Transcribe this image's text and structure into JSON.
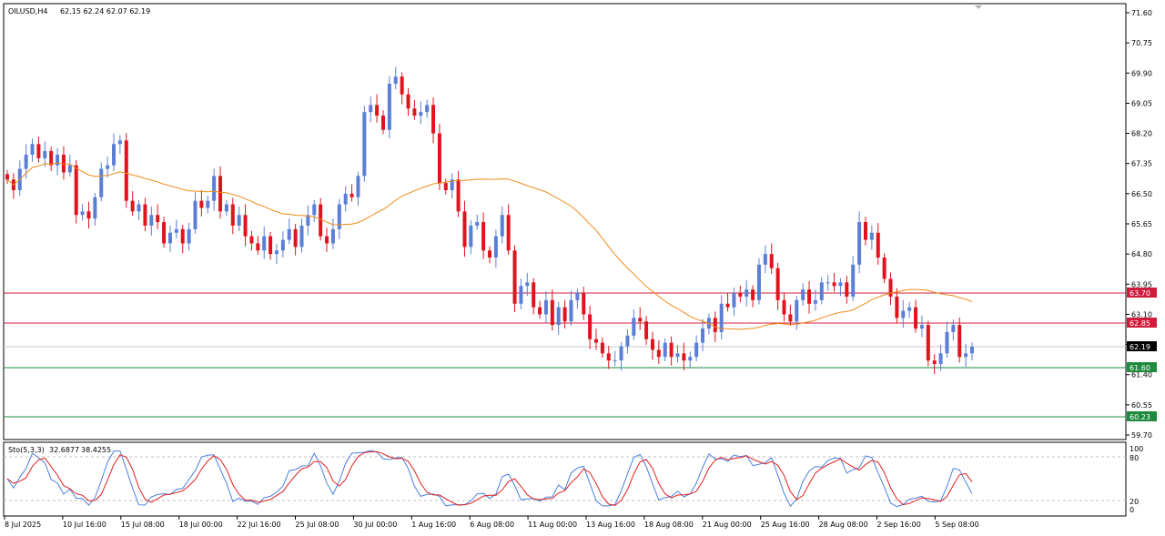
{
  "header": {
    "symbol": "OILUSD,H4",
    "ohlc": "62.15 62.24 62.07 62.19"
  },
  "indicator": {
    "label": "Sto(5,3,3)",
    "main_value": "32.6877",
    "signal_value": "38.4255",
    "levels": [
      "100",
      "80",
      "20",
      "0"
    ]
  },
  "colors": {
    "bull": "#5b7fd6",
    "bear": "#e0141e",
    "ma": "#f08a18",
    "resistance": "#d01c3c",
    "support": "#1e8a3e",
    "current": "#b4b4b4",
    "sto_main": "#4a7fe0",
    "sto_signal": "#e01e1e"
  },
  "chart_data": [
    {
      "type": "candlestick",
      "title": "OILUSD,H4",
      "yticks": [
        "71.60",
        "70.75",
        "69.90",
        "69.05",
        "68.20",
        "67.35",
        "66.50",
        "65.65",
        "64.80",
        "63.95",
        "63.10",
        "62.25",
        "61.40",
        "60.55",
        "59.70"
      ],
      "ylim": [
        59.7,
        71.6
      ],
      "xticks": [
        "8 Jul 2025",
        "10 Jul 16:00",
        "15 Jul 08:00",
        "18 Jul 00:00",
        "22 Jul 16:00",
        "25 Jul 08:00",
        "30 Jul 00:00",
        "1 Aug 16:00",
        "6 Aug 08:00",
        "11 Aug 00:00",
        "13 Aug 16:00",
        "18 Aug 08:00",
        "21 Aug 00:00",
        "25 Aug 16:00",
        "28 Aug 08:00",
        "2 Sep 16:00",
        "5 Sep 08:00"
      ],
      "closes": [
        66.9,
        66.6,
        67.2,
        67.6,
        67.9,
        67.5,
        67.7,
        67.3,
        67.6,
        67.1,
        67.3,
        65.9,
        66.0,
        65.8,
        66.4,
        67.2,
        67.3,
        67.9,
        68.0,
        66.3,
        66.0,
        66.2,
        65.6,
        65.9,
        65.7,
        65.1,
        65.4,
        65.5,
        65.1,
        65.5,
        66.3,
        66.1,
        66.3,
        67.0,
        66.0,
        66.2,
        65.6,
        65.9,
        65.3,
        65.1,
        64.9,
        65.3,
        64.8,
        64.9,
        65.2,
        65.5,
        65.0,
        65.6,
        65.9,
        66.2,
        65.3,
        65.1,
        65.5,
        66.2,
        66.5,
        66.4,
        67.0,
        68.8,
        69.0,
        68.7,
        68.3,
        69.6,
        69.8,
        69.3,
        68.9,
        68.7,
        68.8,
        69.0,
        68.2,
        66.8,
        66.6,
        66.9,
        66.0,
        65.0,
        65.6,
        65.7,
        64.9,
        64.7,
        65.3,
        65.9,
        64.9,
        63.4,
        63.9,
        64.0,
        63.3,
        63.1,
        63.5,
        62.8,
        63.3,
        62.9,
        63.5,
        63.7,
        63.1,
        62.4,
        62.3,
        62.0,
        61.8,
        61.8,
        62.2,
        62.5,
        63.0,
        62.9,
        62.4,
        62.1,
        61.9,
        62.3,
        61.9,
        62.0,
        61.8,
        61.9,
        62.3,
        62.7,
        63.0,
        62.6,
        63.4,
        63.3,
        63.7,
        63.6,
        63.8,
        63.5,
        64.5,
        64.8,
        64.4,
        63.5,
        63.1,
        62.9,
        63.5,
        63.8,
        63.4,
        63.5,
        64.0,
        64.0,
        63.9,
        64.0,
        63.6,
        64.5,
        65.7,
        65.2,
        65.4,
        64.7,
        64.1,
        63.6,
        63.0,
        63.2,
        63.3,
        62.7,
        62.8,
        61.8,
        61.7,
        62.0,
        62.6,
        62.8,
        61.9,
        62.0,
        62.19
      ]
    },
    {
      "type": "line",
      "title": "Sto(5,3,3) 32.6877 38.4255",
      "ylim": [
        0,
        100
      ],
      "levels": [
        20,
        80
      ]
    }
  ],
  "price_tags": {
    "resistance_1": "63.70",
    "resistance_2": "62.85",
    "current": "62.19",
    "support_1": "61.60",
    "support_2": "60.23"
  }
}
